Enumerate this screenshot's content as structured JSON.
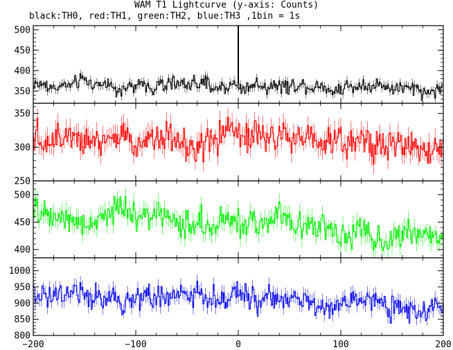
{
  "title": "WAM T1 Lightcurve (y-axis: Counts)",
  "subtitle": "black:TH0, red:TH1, green:TH2, blue:TH3 ,1bin = 1s",
  "chart_data": {
    "type": "line",
    "x_range": [
      -200,
      200
    ],
    "x_ticks": [
      -200,
      -100,
      0,
      100,
      200
    ],
    "x_tick_labels": [
      "−200",
      "−100",
      "0",
      "100",
      "200"
    ],
    "bin_size_s": 1,
    "panels": [
      {
        "series": "TH0",
        "color": "#000000",
        "ylim": [
          320,
          510
        ],
        "yticks": [
          350,
          400,
          450,
          500
        ],
        "base_start": 365,
        "base_end": 362,
        "noise": 15,
        "spike": {
          "x": 0,
          "y": 510
        }
      },
      {
        "series": "TH1",
        "color": "#ff0000",
        "ylim": [
          250,
          365
        ],
        "yticks": [
          250,
          300,
          350
        ],
        "base_start": 322,
        "base_end": 305,
        "noise": 20
      },
      {
        "series": "TH2",
        "color": "#00ee00",
        "ylim": [
          385,
          525
        ],
        "yticks": [
          400,
          450,
          500
        ],
        "base_start": 468,
        "base_end": 428,
        "noise": 22
      },
      {
        "series": "TH3",
        "color": "#0000ee",
        "ylim": [
          800,
          1040
        ],
        "yticks": [
          800,
          850,
          900,
          950,
          1000
        ],
        "base_start": 935,
        "base_end": 878,
        "noise": 30
      }
    ]
  }
}
